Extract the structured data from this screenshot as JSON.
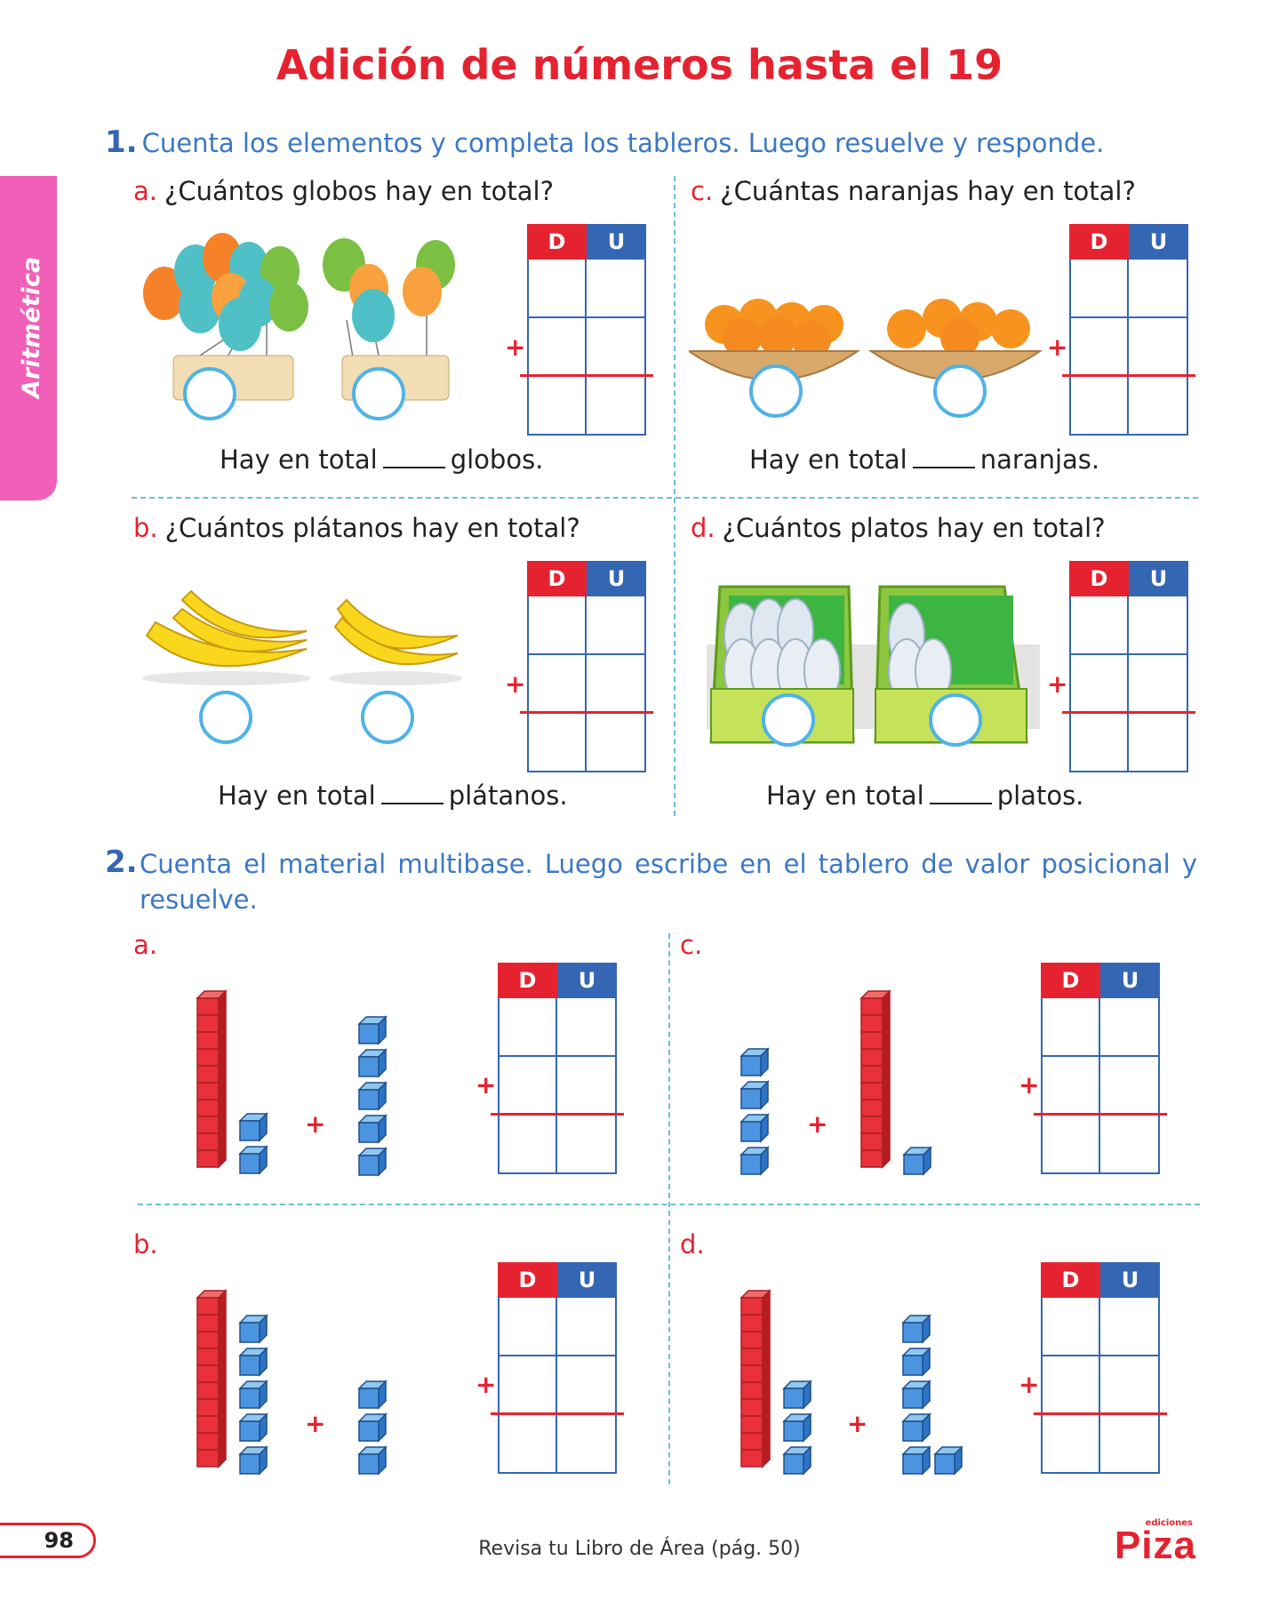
{
  "title": "Adición de números hasta el 19",
  "side_tab": "Aritmética",
  "exercise1": {
    "number": "1.",
    "instruction": "Cuenta los elementos y completa los tableros. Luego resuelve y responde.",
    "items": [
      {
        "letter": "a.",
        "question": "¿Cuántos globos hay en total?",
        "answer_pre": "Hay en total",
        "answer_post": "globos."
      },
      {
        "letter": "c.",
        "question": "¿Cuántas naranjas hay en total?",
        "answer_pre": "Hay en total",
        "answer_post": "naranjas."
      },
      {
        "letter": "b.",
        "question": "¿Cuántos plátanos hay en total?",
        "answer_pre": "Hay en total",
        "answer_post": "plátanos."
      },
      {
        "letter": "d.",
        "question": "¿Cuántos platos hay en total?",
        "answer_pre": "Hay en total",
        "answer_post": "platos."
      }
    ]
  },
  "exercise2": {
    "number": "2.",
    "instruction": "Cuenta el material multibase. Luego escribe en el tablero de valor posicional y resuelve.",
    "letters": [
      "a.",
      "c.",
      "b.",
      "d."
    ]
  },
  "board": {
    "tens": "D",
    "units": "U",
    "plus": "+"
  },
  "footer": {
    "page": "98",
    "text": "Revisa tu Libro de Área (pág. 50)",
    "brand_small": "ediciones",
    "brand": "Piza"
  },
  "colors": {
    "title_red": "#e52330",
    "blue": "#3566b3",
    "pink_tab": "#f15fb8",
    "circle_blue": "#4fb3e6"
  }
}
